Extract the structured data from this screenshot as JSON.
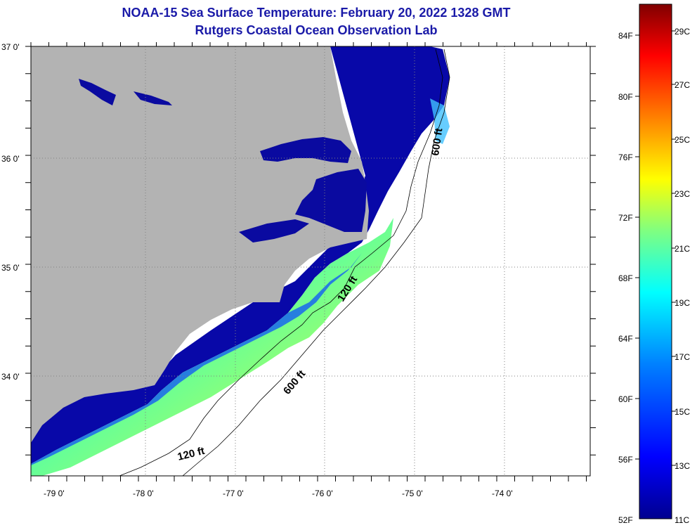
{
  "header": {
    "title": "NOAA-15 Sea Surface Temperature:  February 20, 2022 1328 GMT",
    "subtitle": "Rutgers Coastal Ocean Observation Lab"
  },
  "map": {
    "lat_labels": [
      {
        "lat": 37,
        "label": "37 0'"
      },
      {
        "lat": 36,
        "label": "36 0'"
      },
      {
        "lat": 35,
        "label": "35 0'"
      },
      {
        "lat": 34,
        "label": "34 0'"
      }
    ],
    "lon_labels": [
      {
        "lon": -79,
        "label": "-79 0'"
      },
      {
        "lon": -78,
        "label": "-78 0'"
      },
      {
        "lon": -77,
        "label": "-77 0'"
      },
      {
        "lon": -76,
        "label": "-76 0'"
      },
      {
        "lon": -75,
        "label": "-75 0'"
      },
      {
        "lon": -74,
        "label": "-74 0'"
      }
    ],
    "contour_labels": [
      {
        "text": "600 ft",
        "id": "north"
      },
      {
        "text": "120 ft",
        "id": "mid"
      },
      {
        "text": "600 ft",
        "id": "south"
      },
      {
        "text": "120 ft",
        "id": "southwest"
      }
    ],
    "colors": {
      "land": "#b3b3b3",
      "no_data": "#ffffff",
      "cold_water": "#0a0aa0"
    }
  },
  "colorbar": {
    "fahrenheit_labels": [
      "84F",
      "80F",
      "76F",
      "72F",
      "68F",
      "64F",
      "60F",
      "56F",
      "52F"
    ],
    "celsius_labels": [
      "29C",
      "27C",
      "25C",
      "23C",
      "21C",
      "19C",
      "17C",
      "15C",
      "13C",
      "11C"
    ],
    "color_stops": [
      "#00008f",
      "#0000ff",
      "#0080ff",
      "#00ffff",
      "#80ff80",
      "#ffff00",
      "#ff8000",
      "#ff0000",
      "#800000"
    ]
  }
}
